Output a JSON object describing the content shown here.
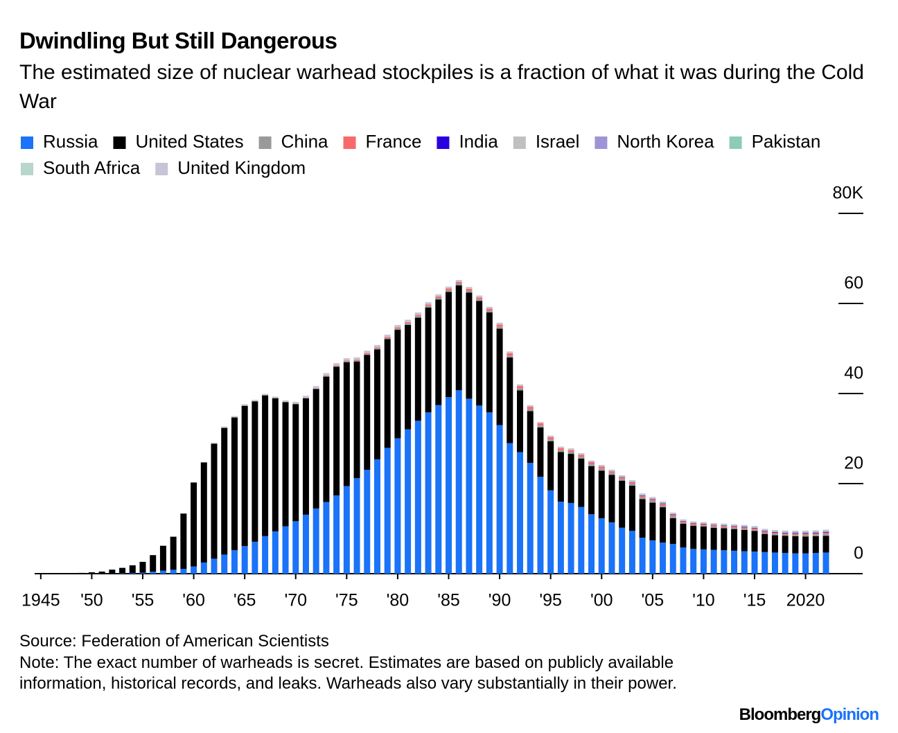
{
  "chart_data": {
    "type": "stacked-bar",
    "title": "Dwindling But Still Dangerous",
    "subtitle": "The estimated size of nuclear warhead stockpiles is a fraction of what it was during the Cold War",
    "source": "Source: Federation of American Scientists",
    "note": "Note: The exact number of warheads is secret. Estimates are based on publicly available information, historical records, and leaks. Warheads also vary substantially in their power.",
    "x": [
      1945,
      1946,
      1947,
      1948,
      1949,
      1950,
      1951,
      1952,
      1953,
      1954,
      1955,
      1956,
      1957,
      1958,
      1959,
      1960,
      1961,
      1962,
      1963,
      1964,
      1965,
      1966,
      1967,
      1968,
      1969,
      1970,
      1971,
      1972,
      1973,
      1974,
      1975,
      1976,
      1977,
      1978,
      1979,
      1980,
      1981,
      1982,
      1983,
      1984,
      1985,
      1986,
      1987,
      1988,
      1989,
      1990,
      1991,
      1992,
      1993,
      1994,
      1995,
      1996,
      1997,
      1998,
      1999,
      2000,
      2001,
      2002,
      2003,
      2004,
      2005,
      2006,
      2007,
      2008,
      2009,
      2010,
      2011,
      2012,
      2013,
      2014,
      2015,
      2016,
      2017,
      2018,
      2019,
      2020,
      2021,
      2022
    ],
    "xlim": [
      1944.4,
      2025.6
    ],
    "xticks": [
      1945,
      {
        "value": 1950,
        "label": "'50"
      },
      {
        "value": 1955,
        "label": "'55"
      },
      {
        "value": 1960,
        "label": "'60"
      },
      {
        "value": 1965,
        "label": "'65"
      },
      {
        "value": 1970,
        "label": "'70"
      },
      {
        "value": 1975,
        "label": "'75"
      },
      {
        "value": 1980,
        "label": "'80"
      },
      {
        "value": 1985,
        "label": "'85"
      },
      {
        "value": 1990,
        "label": "'90"
      },
      {
        "value": 1995,
        "label": "'95"
      },
      {
        "value": 2000,
        "label": "'00"
      },
      {
        "value": 2005,
        "label": "'05"
      },
      {
        "value": 2010,
        "label": "'10"
      },
      {
        "value": 2015,
        "label": "'15"
      },
      2020
    ],
    "ylim": [
      0,
      80000
    ],
    "yticks": [
      {
        "value": 80000,
        "label": "80K"
      },
      {
        "value": 60000,
        "label": "60"
      },
      {
        "value": 40000,
        "label": "40"
      },
      {
        "value": 20000,
        "label": "20"
      },
      0
    ],
    "series": [
      {
        "name": "Russia",
        "color": "#1a73f8",
        "values": [
          0,
          0,
          0,
          0,
          1,
          5,
          25,
          50,
          120,
          150,
          200,
          426,
          660,
          869,
          1060,
          1605,
          2471,
          3322,
          4238,
          5221,
          6129,
          7089,
          8339,
          9399,
          10538,
          11643,
          13092,
          14478,
          15915,
          17385,
          19443,
          21205,
          23044,
          25393,
          27935,
          30062,
          32049,
          33952,
          35804,
          37431,
          39197,
          40723,
          38859,
          37333,
          35805,
          33000,
          29000,
          27000,
          24600,
          21500,
          18500,
          16000,
          15700,
          14800,
          13200,
          12300,
          11400,
          10200,
          9500,
          8000,
          7400,
          6900,
          6600,
          5800,
          5500,
          5400,
          5300,
          5200,
          5100,
          5000,
          4900,
          4800,
          4700,
          4600,
          4500,
          4500,
          4600,
          4700
        ]
      },
      {
        "name": "United States",
        "color": "#000000",
        "values": [
          2,
          9,
          13,
          50,
          170,
          299,
          438,
          841,
          1169,
          1703,
          2422,
          3692,
          5543,
          7345,
          12298,
          18638,
          22229,
          25540,
          28133,
          29463,
          31139,
          31175,
          31255,
          29561,
          27552,
          26008,
          25830,
          26516,
          27835,
          28537,
          27519,
          25914,
          25542,
          24418,
          24138,
          24104,
          23208,
          22886,
          23305,
          23459,
          23368,
          23317,
          23575,
          23205,
          22217,
          21392,
          19008,
          13708,
          11511,
          10979,
          10904,
          11011,
          10903,
          10732,
          10685,
          10577,
          10526,
          10457,
          10027,
          8570,
          8360,
          7853,
          5709,
          5273,
          5113,
          5066,
          4897,
          4881,
          4804,
          4717,
          4571,
          4018,
          3822,
          3785,
          3805,
          3750,
          3708,
          3708
        ]
      },
      {
        "name": "China",
        "color": "#999999",
        "values": [
          0,
          0,
          0,
          0,
          0,
          0,
          0,
          0,
          0,
          0,
          0,
          0,
          0,
          0,
          0,
          0,
          0,
          0,
          0,
          1,
          5,
          20,
          25,
          35,
          50,
          75,
          100,
          130,
          150,
          170,
          185,
          190,
          200,
          220,
          235,
          280,
          330,
          360,
          380,
          415,
          426,
          425,
          415,
          410,
          430,
          430,
          435,
          435,
          435,
          400,
          400,
          400,
          400,
          400,
          400,
          400,
          400,
          400,
          400,
          400,
          400,
          400,
          400,
          240,
          240,
          240,
          240,
          240,
          250,
          260,
          260,
          260,
          270,
          280,
          290,
          350,
          350,
          410
        ]
      },
      {
        "name": "France",
        "color": "#f86a6a",
        "values": [
          0,
          0,
          0,
          0,
          0,
          0,
          0,
          0,
          0,
          0,
          0,
          0,
          0,
          0,
          0,
          0,
          0,
          0,
          0,
          4,
          32,
          36,
          36,
          36,
          36,
          36,
          45,
          70,
          116,
          145,
          188,
          212,
          228,
          235,
          235,
          250,
          274,
          274,
          279,
          280,
          360,
          355,
          420,
          411,
          412,
          504,
          538,
          540,
          525,
          510,
          500,
          450,
          450,
          450,
          450,
          470,
          350,
          350,
          350,
          350,
          350,
          350,
          350,
          300,
          300,
          300,
          300,
          300,
          300,
          300,
          300,
          300,
          300,
          300,
          300,
          300,
          300,
          300
        ]
      },
      {
        "name": "India",
        "color": "#2a00e0",
        "values": [
          0,
          0,
          0,
          0,
          0,
          0,
          0,
          0,
          0,
          0,
          0,
          0,
          0,
          0,
          0,
          0,
          0,
          0,
          0,
          0,
          0,
          0,
          0,
          0,
          0,
          0,
          0,
          0,
          0,
          0,
          0,
          0,
          0,
          0,
          0,
          0,
          0,
          0,
          0,
          0,
          0,
          0,
          0,
          0,
          0,
          0,
          0,
          0,
          0,
          0,
          0,
          0,
          0,
          20,
          30,
          40,
          50,
          60,
          70,
          80,
          90,
          100,
          110,
          70,
          70,
          80,
          90,
          90,
          100,
          110,
          110,
          120,
          130,
          140,
          150,
          150,
          160,
          164
        ]
      },
      {
        "name": "Israel",
        "color": "#c0c0c0",
        "values": [
          0,
          0,
          0,
          0,
          0,
          0,
          0,
          0,
          0,
          0,
          0,
          0,
          0,
          0,
          0,
          0,
          0,
          0,
          0,
          0,
          0,
          0,
          2,
          4,
          6,
          8,
          10,
          12,
          14,
          16,
          18,
          20,
          22,
          24,
          26,
          28,
          30,
          32,
          34,
          36,
          38,
          40,
          42,
          44,
          46,
          48,
          50,
          52,
          54,
          56,
          58,
          60,
          62,
          64,
          66,
          68,
          70,
          72,
          74,
          76,
          78,
          80,
          80,
          80,
          80,
          80,
          80,
          80,
          80,
          80,
          80,
          80,
          80,
          80,
          80,
          80,
          80,
          80
        ]
      },
      {
        "name": "North Korea",
        "color": "#9d94d6",
        "values": [
          0,
          0,
          0,
          0,
          0,
          0,
          0,
          0,
          0,
          0,
          0,
          0,
          0,
          0,
          0,
          0,
          0,
          0,
          0,
          0,
          0,
          0,
          0,
          0,
          0,
          0,
          0,
          0,
          0,
          0,
          0,
          0,
          0,
          0,
          0,
          0,
          0,
          0,
          0,
          0,
          0,
          0,
          0,
          0,
          0,
          0,
          0,
          0,
          0,
          0,
          0,
          0,
          0,
          0,
          0,
          0,
          0,
          0,
          0,
          0,
          0,
          1,
          2,
          3,
          4,
          5,
          6,
          8,
          10,
          12,
          14,
          16,
          18,
          20,
          25,
          30,
          40,
          30
        ]
      },
      {
        "name": "Pakistan",
        "color": "#8dcbb8",
        "values": [
          0,
          0,
          0,
          0,
          0,
          0,
          0,
          0,
          0,
          0,
          0,
          0,
          0,
          0,
          0,
          0,
          0,
          0,
          0,
          0,
          0,
          0,
          0,
          0,
          0,
          0,
          0,
          0,
          0,
          0,
          0,
          0,
          0,
          0,
          0,
          0,
          0,
          0,
          0,
          0,
          0,
          0,
          0,
          0,
          0,
          0,
          0,
          0,
          0,
          0,
          0,
          0,
          0,
          5,
          10,
          20,
          30,
          40,
          50,
          60,
          70,
          80,
          90,
          60,
          70,
          80,
          90,
          100,
          110,
          120,
          130,
          140,
          140,
          150,
          160,
          160,
          165,
          165
        ]
      },
      {
        "name": "South Africa",
        "color": "#b7d6cc",
        "values": [
          0,
          0,
          0,
          0,
          0,
          0,
          0,
          0,
          0,
          0,
          0,
          0,
          0,
          0,
          0,
          0,
          0,
          0,
          0,
          0,
          0,
          0,
          0,
          0,
          0,
          0,
          0,
          0,
          0,
          0,
          0,
          0,
          0,
          0,
          0,
          0,
          0,
          1,
          2,
          3,
          4,
          5,
          6,
          6,
          6,
          6,
          6,
          6,
          0,
          0,
          0,
          0,
          0,
          0,
          0,
          0,
          0,
          0,
          0,
          0,
          0,
          0,
          0,
          0,
          0,
          0,
          0,
          0,
          0,
          0,
          0,
          0,
          0,
          0,
          0,
          0,
          0,
          0
        ]
      },
      {
        "name": "United Kingdom",
        "color": "#c6c4d6",
        "values": [
          0,
          0,
          0,
          0,
          0,
          0,
          0,
          0,
          1,
          5,
          10,
          15,
          20,
          22,
          25,
          30,
          50,
          205,
          280,
          310,
          310,
          270,
          270,
          280,
          308,
          375,
          420,
          450,
          492,
          492,
          492,
          492,
          492,
          492,
          492,
          492,
          492,
          492,
          470,
          410,
          350,
          350,
          350,
          350,
          350,
          350,
          300,
          300,
          300,
          250,
          300,
          300,
          300,
          280,
          281,
          281,
          280,
          280,
          280,
          280,
          280,
          280,
          225,
          225,
          225,
          225,
          225,
          225,
          225,
          225,
          225,
          225,
          225,
          225,
          225,
          225,
          225,
          225
        ]
      }
    ]
  },
  "branding": {
    "name": "Bloomberg",
    "section": "Opinion"
  }
}
